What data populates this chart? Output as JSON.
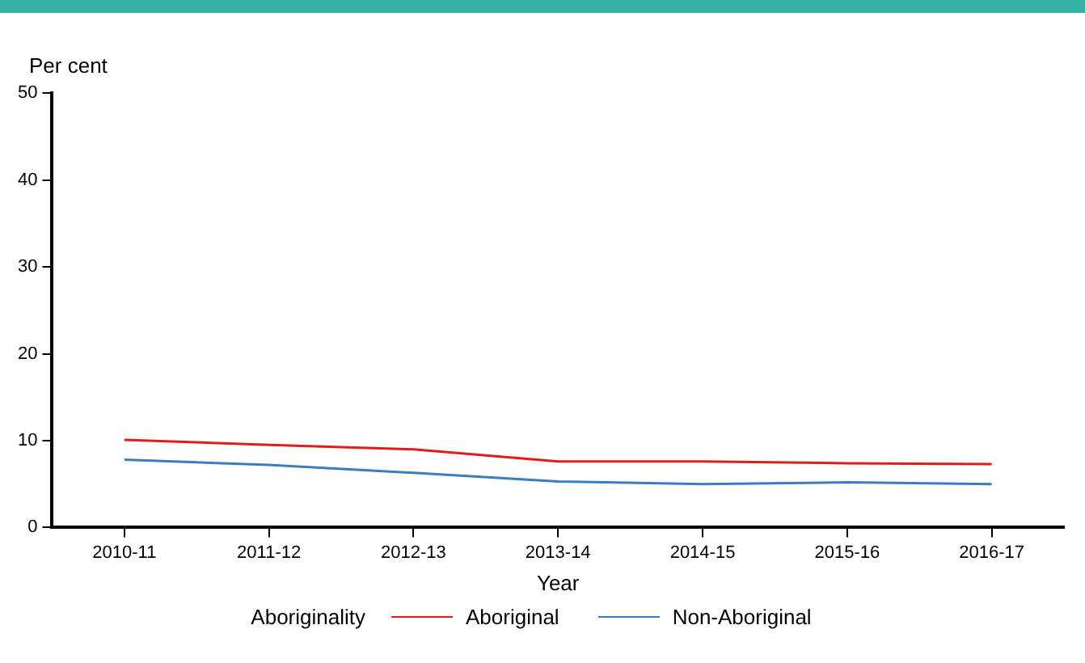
{
  "chart_data": {
    "type": "line",
    "ylabel": "Per cent",
    "xlabel": "Year",
    "legend_title": "Aboriginality",
    "legend": "bottom",
    "grid": false,
    "marker": "none",
    "line_style": "solid",
    "categories": [
      "2010-11",
      "2011-12",
      "2012-13",
      "2013-14",
      "2014-15",
      "2015-16",
      "2016-17"
    ],
    "ylim": [
      0,
      50
    ],
    "yticks": [
      0,
      10,
      20,
      30,
      40,
      50
    ],
    "series": [
      {
        "name": "Aboriginal",
        "color": "#e41a1c",
        "values": [
          10.1,
          9.5,
          9.0,
          7.6,
          7.6,
          7.4,
          7.3
        ]
      },
      {
        "name": "Non-Aboriginal",
        "color": "#3a7dc0",
        "values": [
          7.8,
          7.2,
          6.3,
          5.3,
          5.0,
          5.2,
          5.0
        ]
      }
    ]
  }
}
